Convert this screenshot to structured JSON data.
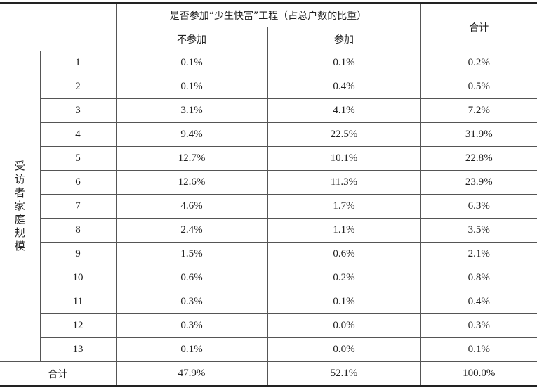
{
  "header": {
    "group_label": "是否参加“少生快富”工程（占总户数的比重）",
    "col_not_join": "不参加",
    "col_join": "参加",
    "col_total": "合计"
  },
  "row_group_label": "受访者家庭规模",
  "rows": [
    {
      "size": "1",
      "not_join": "0.1%",
      "join": "0.1%",
      "total": "0.2%"
    },
    {
      "size": "2",
      "not_join": "0.1%",
      "join": "0.4%",
      "total": "0.5%"
    },
    {
      "size": "3",
      "not_join": "3.1%",
      "join": "4.1%",
      "total": "7.2%"
    },
    {
      "size": "4",
      "not_join": "9.4%",
      "join": "22.5%",
      "total": "31.9%"
    },
    {
      "size": "5",
      "not_join": "12.7%",
      "join": "10.1%",
      "total": "22.8%"
    },
    {
      "size": "6",
      "not_join": "12.6%",
      "join": "11.3%",
      "total": "23.9%"
    },
    {
      "size": "7",
      "not_join": "4.6%",
      "join": "1.7%",
      "total": "6.3%"
    },
    {
      "size": "8",
      "not_join": "2.4%",
      "join": "1.1%",
      "total": "3.5%"
    },
    {
      "size": "9",
      "not_join": "1.5%",
      "join": "0.6%",
      "total": "2.1%"
    },
    {
      "size": "10",
      "not_join": "0.6%",
      "join": "0.2%",
      "total": "0.8%"
    },
    {
      "size": "11",
      "not_join": "0.3%",
      "join": "0.1%",
      "total": "0.4%"
    },
    {
      "size": "12",
      "not_join": "0.3%",
      "join": "0.0%",
      "total": "0.3%"
    },
    {
      "size": "13",
      "not_join": "0.1%",
      "join": "0.0%",
      "total": "0.1%"
    }
  ],
  "total_row": {
    "label": "合计",
    "not_join": "47.9%",
    "join": "52.1%",
    "total": "100.0%"
  }
}
